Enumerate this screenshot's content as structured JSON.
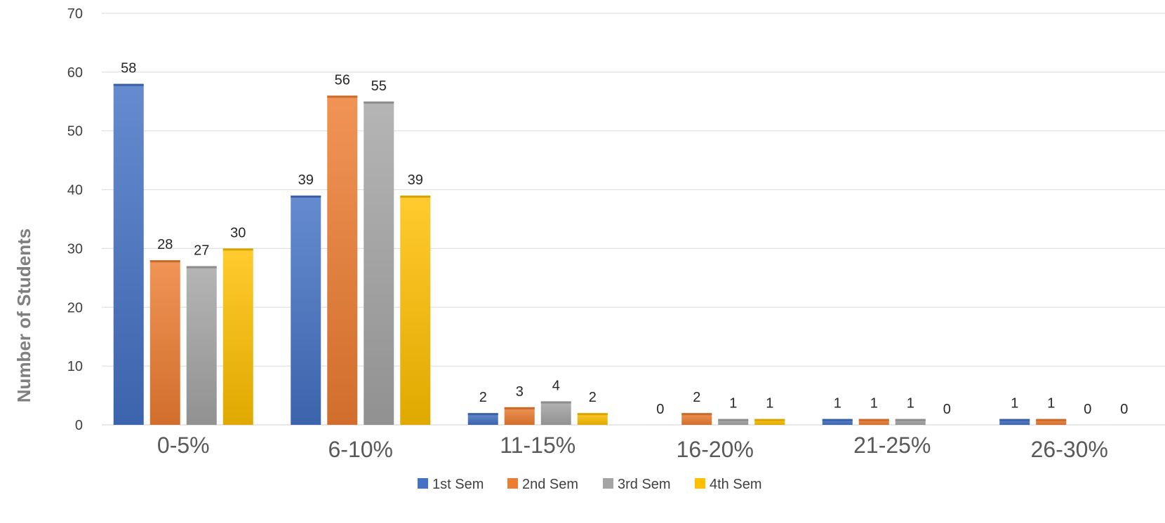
{
  "chart_data": {
    "type": "bar",
    "title": "",
    "xlabel": "",
    "ylabel": "Number of Students",
    "ylim": [
      0,
      70
    ],
    "yticks": [
      0,
      10,
      20,
      30,
      40,
      50,
      60,
      70
    ],
    "grid": true,
    "legend_position": "bottom",
    "categories": [
      "0-5%",
      "6-10%",
      "11-15%",
      "16-20%",
      "21-25%",
      "26-30%"
    ],
    "series": [
      {
        "name": "1st Sem",
        "color": "#4472C4",
        "values": [
          58,
          39,
          2,
          0,
          1,
          1
        ]
      },
      {
        "name": "2nd Sem",
        "color": "#ED7D31",
        "values": [
          28,
          56,
          3,
          2,
          1,
          1
        ]
      },
      {
        "name": "3rd Sem",
        "color": "#A5A5A5",
        "values": [
          27,
          55,
          4,
          1,
          1,
          0
        ]
      },
      {
        "name": "4th Sem",
        "color": "#FFC000",
        "values": [
          30,
          39,
          2,
          1,
          0,
          0
        ]
      }
    ]
  }
}
